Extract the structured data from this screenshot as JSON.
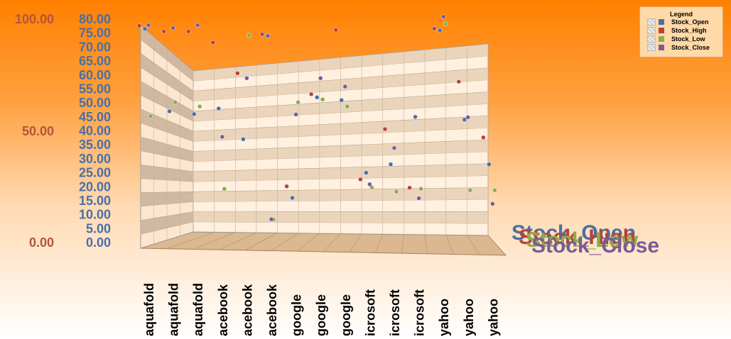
{
  "chart_data": {
    "type": "scatter",
    "title": "",
    "categories": [
      "aquafold",
      "aquafold",
      "aquafold",
      "facebook",
      "facebook",
      "facebook",
      "google",
      "google",
      "google",
      "microsoft",
      "microsoft",
      "microsoft",
      "yahoo",
      "yahoo",
      "yahoo"
    ],
    "ticks_visible": [
      "aquafold",
      "aquafold",
      "aquafold",
      "acebook",
      "acebook",
      "acebook",
      "google",
      "google",
      "google",
      "icrosoft",
      "icrosoft",
      "icrosoft",
      "yahoo",
      "yahoo",
      "yahoo"
    ],
    "y_left": {
      "ticks": [
        "100.00",
        "50.00",
        "0.00"
      ],
      "range": [
        0,
        100
      ]
    },
    "y_right": {
      "ticks": [
        "80.00",
        "75.00",
        "70.00",
        "65.00",
        "60.00",
        "55.00",
        "50.00",
        "45.00",
        "40.00",
        "35.00",
        "30.00",
        "25.00",
        "20.00",
        "15.00",
        "10.00",
        "5.00",
        "0.00"
      ],
      "range": [
        0,
        80
      ]
    },
    "series": [
      {
        "name": "Stock_Open",
        "color": "#4a6fa5",
        "values": [
          76.5,
          47.0,
          46.0,
          48.0,
          37.0,
          74.0,
          16.0,
          52.0,
          51.0,
          25.0,
          28.0,
          45.0,
          76.0,
          44.0,
          28.0
        ]
      },
      {
        "name": "Stock_High",
        "color": "#b5433a",
        "values": [
          78.0,
          76.0,
          76.0,
          72.0,
          61.0,
          75.0,
          20.5,
          53.5,
          76.5,
          23.0,
          41.0,
          20.0,
          77.0,
          58.0,
          38.0
        ]
      },
      {
        "name": "Stock_Low",
        "color": "#8aac4a",
        "values": [
          46.0,
          51.0,
          49.5,
          20.0,
          75.0,
          9.0,
          51.0,
          52.0,
          49.5,
          20.5,
          19.0,
          20.0,
          79.0,
          19.5,
          19.5
        ]
      },
      {
        "name": "Stock_Close",
        "color": "#7a5a9a",
        "values": [
          79.0,
          78.0,
          79.0,
          39.0,
          60.0,
          9.5,
          47.0,
          60.0,
          57.0,
          22.0,
          35.0,
          17.0,
          82.0,
          46.0,
          15.0
        ]
      }
    ],
    "legend": {
      "title": "Legend",
      "position": "top-right"
    },
    "depth_labels": [
      "Stock_Open",
      "Stock_High",
      "Stock_Low",
      "Stock_Close"
    ]
  }
}
